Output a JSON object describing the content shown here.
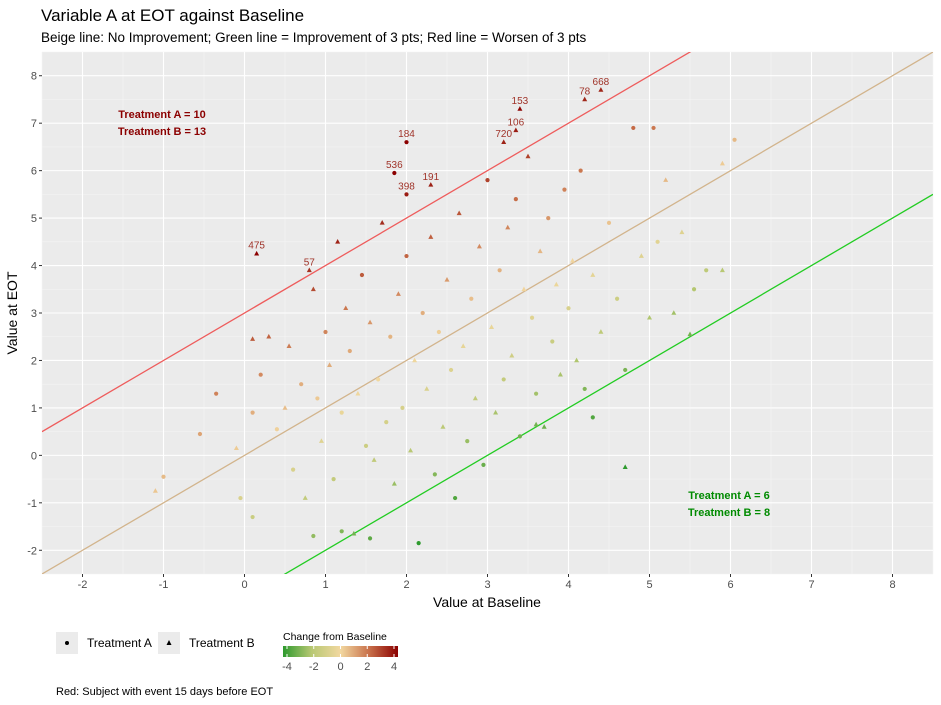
{
  "chart_data": {
    "type": "scatter",
    "title": "Variable A at EOT against Baseline",
    "subtitle": "Beige line: No Improvement; Green line = Improvement of 3 pts; Red line = Worsen of 3 pts",
    "xlabel": "Value at Baseline",
    "ylabel": "Value at EOT",
    "xlim": [
      -2.5,
      8.5
    ],
    "ylim": [
      -2.5,
      8.5
    ],
    "x_ticks": [
      -2,
      -1,
      0,
      1,
      2,
      3,
      4,
      5,
      6,
      7,
      8
    ],
    "y_ticks": [
      -2,
      -1,
      0,
      1,
      2,
      3,
      4,
      5,
      6,
      7,
      8
    ],
    "grid": true,
    "reference_lines": [
      {
        "description": "No Improvement",
        "intercept": 0,
        "slope": 1,
        "color": "#d2b48c"
      },
      {
        "description": "Improvement of 3 pts",
        "intercept": -3,
        "slope": 1,
        "color": "#22cc22"
      },
      {
        "description": "Worsen of 3 pts",
        "intercept": 3,
        "slope": 1,
        "color": "#ee5c5c"
      }
    ],
    "color_scale": {
      "title": "Change from Baseline",
      "ticks": [
        -4,
        -2,
        0,
        2,
        4
      ],
      "stops": [
        "#2e9a2e",
        "#b8c873",
        "#f2d8a0",
        "#c8704a",
        "#8b0000"
      ]
    },
    "shape_legend": [
      {
        "label": "Treatment A",
        "shape": "circle"
      },
      {
        "label": "Treatment B",
        "shape": "triangle"
      }
    ],
    "counts_top_left": [
      "Treatment A = 10",
      "Treatment B = 13"
    ],
    "counts_bottom_right": [
      "Treatment A = 6",
      "Treatment B = 8"
    ],
    "labeled_points": [
      {
        "label": "668",
        "x": 4.4,
        "y": 7.7,
        "group": "B"
      },
      {
        "label": "78",
        "x": 4.2,
        "y": 7.5,
        "group": "B"
      },
      {
        "label": "153",
        "x": 3.4,
        "y": 7.3,
        "group": "B"
      },
      {
        "label": "106",
        "x": 3.35,
        "y": 6.85,
        "group": "B"
      },
      {
        "label": "720",
        "x": 3.2,
        "y": 6.6,
        "group": "B"
      },
      {
        "label": "184",
        "x": 2.0,
        "y": 6.6,
        "group": "A"
      },
      {
        "label": "536",
        "x": 1.85,
        "y": 5.95,
        "group": "A"
      },
      {
        "label": "191",
        "x": 2.3,
        "y": 5.7,
        "group": "B"
      },
      {
        "label": "398",
        "x": 2.0,
        "y": 5.5,
        "group": "A"
      },
      {
        "label": "475",
        "x": 0.15,
        "y": 4.25,
        "group": "B"
      },
      {
        "label": "57",
        "x": 0.8,
        "y": 3.9,
        "group": "B"
      }
    ],
    "points": [
      {
        "x": -1.0,
        "y": -0.45,
        "group": "A"
      },
      {
        "x": -1.1,
        "y": -0.75,
        "group": "B"
      },
      {
        "x": -0.55,
        "y": 0.45,
        "group": "A"
      },
      {
        "x": -0.35,
        "y": 1.3,
        "group": "A"
      },
      {
        "x": -0.1,
        "y": 0.15,
        "group": "B"
      },
      {
        "x": -0.05,
        "y": -0.9,
        "group": "A"
      },
      {
        "x": 0.1,
        "y": -1.3,
        "group": "A"
      },
      {
        "x": 0.1,
        "y": 0.9,
        "group": "A"
      },
      {
        "x": 0.1,
        "y": 2.45,
        "group": "B"
      },
      {
        "x": 0.2,
        "y": 1.7,
        "group": "A"
      },
      {
        "x": 0.3,
        "y": 2.5,
        "group": "B"
      },
      {
        "x": 0.4,
        "y": 0.55,
        "group": "A"
      },
      {
        "x": 0.5,
        "y": 1.0,
        "group": "B"
      },
      {
        "x": 0.55,
        "y": 2.3,
        "group": "B"
      },
      {
        "x": 0.6,
        "y": -0.3,
        "group": "A"
      },
      {
        "x": 0.7,
        "y": 1.5,
        "group": "A"
      },
      {
        "x": 0.75,
        "y": -0.9,
        "group": "B"
      },
      {
        "x": 0.85,
        "y": 3.5,
        "group": "B"
      },
      {
        "x": 0.9,
        "y": 1.2,
        "group": "A"
      },
      {
        "x": 0.95,
        "y": 0.3,
        "group": "B"
      },
      {
        "x": 1.0,
        "y": 2.6,
        "group": "A"
      },
      {
        "x": 1.05,
        "y": 1.9,
        "group": "B"
      },
      {
        "x": 1.1,
        "y": -0.5,
        "group": "A"
      },
      {
        "x": 1.15,
        "y": 4.5,
        "group": "B"
      },
      {
        "x": 1.2,
        "y": 0.9,
        "group": "A"
      },
      {
        "x": 1.25,
        "y": 3.1,
        "group": "B"
      },
      {
        "x": 1.3,
        "y": 2.2,
        "group": "A"
      },
      {
        "x": 1.35,
        "y": -1.65,
        "group": "B"
      },
      {
        "x": 1.4,
        "y": 1.3,
        "group": "B"
      },
      {
        "x": 1.45,
        "y": 3.8,
        "group": "A"
      },
      {
        "x": 1.5,
        "y": 0.2,
        "group": "A"
      },
      {
        "x": 1.55,
        "y": 2.8,
        "group": "B"
      },
      {
        "x": 1.6,
        "y": -0.1,
        "group": "B"
      },
      {
        "x": 1.65,
        "y": 1.6,
        "group": "A"
      },
      {
        "x": 1.7,
        "y": 4.9,
        "group": "B"
      },
      {
        "x": 1.75,
        "y": 0.7,
        "group": "A"
      },
      {
        "x": 1.8,
        "y": 2.5,
        "group": "A"
      },
      {
        "x": 1.85,
        "y": -0.6,
        "group": "B"
      },
      {
        "x": 1.9,
        "y": 3.4,
        "group": "B"
      },
      {
        "x": 1.95,
        "y": 1.0,
        "group": "A"
      },
      {
        "x": 2.0,
        "y": 4.2,
        "group": "A"
      },
      {
        "x": 2.05,
        "y": 0.1,
        "group": "B"
      },
      {
        "x": 2.1,
        "y": 2.0,
        "group": "B"
      },
      {
        "x": 2.15,
        "y": -1.85,
        "group": "A"
      },
      {
        "x": 2.2,
        "y": 3.0,
        "group": "A"
      },
      {
        "x": 2.25,
        "y": 1.4,
        "group": "B"
      },
      {
        "x": 2.3,
        "y": 4.6,
        "group": "B"
      },
      {
        "x": 2.35,
        "y": -0.4,
        "group": "A"
      },
      {
        "x": 2.4,
        "y": 2.6,
        "group": "A"
      },
      {
        "x": 2.45,
        "y": 0.6,
        "group": "B"
      },
      {
        "x": 2.5,
        "y": 3.7,
        "group": "B"
      },
      {
        "x": 2.55,
        "y": 1.8,
        "group": "A"
      },
      {
        "x": 2.6,
        "y": -0.9,
        "group": "A"
      },
      {
        "x": 2.65,
        "y": 5.1,
        "group": "B"
      },
      {
        "x": 2.7,
        "y": 2.3,
        "group": "B"
      },
      {
        "x": 2.75,
        "y": 0.3,
        "group": "A"
      },
      {
        "x": 2.8,
        "y": 3.3,
        "group": "A"
      },
      {
        "x": 2.85,
        "y": 1.2,
        "group": "B"
      },
      {
        "x": 2.9,
        "y": 4.4,
        "group": "B"
      },
      {
        "x": 2.95,
        "y": -0.2,
        "group": "A"
      },
      {
        "x": 3.0,
        "y": 5.8,
        "group": "A"
      },
      {
        "x": 3.05,
        "y": 2.7,
        "group": "B"
      },
      {
        "x": 3.1,
        "y": 0.9,
        "group": "B"
      },
      {
        "x": 3.15,
        "y": 3.9,
        "group": "A"
      },
      {
        "x": 3.2,
        "y": 1.6,
        "group": "A"
      },
      {
        "x": 3.25,
        "y": 4.8,
        "group": "B"
      },
      {
        "x": 3.3,
        "y": 2.1,
        "group": "B"
      },
      {
        "x": 3.35,
        "y": 5.4,
        "group": "A"
      },
      {
        "x": 3.4,
        "y": 0.4,
        "group": "A"
      },
      {
        "x": 3.45,
        "y": 3.5,
        "group": "B"
      },
      {
        "x": 3.5,
        "y": 6.3,
        "group": "B"
      },
      {
        "x": 3.55,
        "y": 2.9,
        "group": "A"
      },
      {
        "x": 3.6,
        "y": 1.3,
        "group": "A"
      },
      {
        "x": 3.65,
        "y": 4.3,
        "group": "B"
      },
      {
        "x": 3.7,
        "y": 0.6,
        "group": "B"
      },
      {
        "x": 3.75,
        "y": 5.0,
        "group": "A"
      },
      {
        "x": 3.8,
        "y": 2.4,
        "group": "A"
      },
      {
        "x": 3.85,
        "y": 3.6,
        "group": "B"
      },
      {
        "x": 3.9,
        "y": 1.7,
        "group": "B"
      },
      {
        "x": 3.95,
        "y": 5.6,
        "group": "A"
      },
      {
        "x": 4.0,
        "y": 3.1,
        "group": "A"
      },
      {
        "x": 4.05,
        "y": 4.1,
        "group": "B"
      },
      {
        "x": 4.1,
        "y": 2.0,
        "group": "B"
      },
      {
        "x": 4.15,
        "y": 6.0,
        "group": "A"
      },
      {
        "x": 4.2,
        "y": 1.4,
        "group": "A"
      },
      {
        "x": 4.3,
        "y": 3.8,
        "group": "B"
      },
      {
        "x": 4.4,
        "y": 2.6,
        "group": "B"
      },
      {
        "x": 4.5,
        "y": 4.9,
        "group": "A"
      },
      {
        "x": 4.6,
        "y": 3.3,
        "group": "A"
      },
      {
        "x": 4.7,
        "y": 1.8,
        "group": "A"
      },
      {
        "x": 4.8,
        "y": 6.9,
        "group": "A"
      },
      {
        "x": 4.9,
        "y": 4.2,
        "group": "B"
      },
      {
        "x": 5.0,
        "y": 2.9,
        "group": "B"
      },
      {
        "x": 5.05,
        "y": 6.9,
        "group": "A"
      },
      {
        "x": 5.1,
        "y": 4.5,
        "group": "A"
      },
      {
        "x": 5.2,
        "y": 5.8,
        "group": "B"
      },
      {
        "x": 5.3,
        "y": 3.0,
        "group": "B"
      },
      {
        "x": 5.4,
        "y": 4.7,
        "group": "B"
      },
      {
        "x": 5.5,
        "y": 2.55,
        "group": "B"
      },
      {
        "x": 5.55,
        "y": 3.5,
        "group": "A"
      },
      {
        "x": 5.7,
        "y": 3.9,
        "group": "A"
      },
      {
        "x": 5.9,
        "y": 3.9,
        "group": "B"
      },
      {
        "x": 6.05,
        "y": 6.65,
        "group": "A"
      },
      {
        "x": 5.9,
        "y": 6.15,
        "group": "B"
      },
      {
        "x": 4.7,
        "y": -0.25,
        "group": "B"
      },
      {
        "x": 4.3,
        "y": 0.8,
        "group": "A"
      },
      {
        "x": 3.6,
        "y": 0.65,
        "group": "B"
      },
      {
        "x": 0.85,
        "y": -1.7,
        "group": "A"
      },
      {
        "x": 1.55,
        "y": -1.75,
        "group": "A"
      },
      {
        "x": 1.2,
        "y": -1.6,
        "group": "A"
      }
    ]
  },
  "caption": "Red: Subject with event 15 days before EOT"
}
